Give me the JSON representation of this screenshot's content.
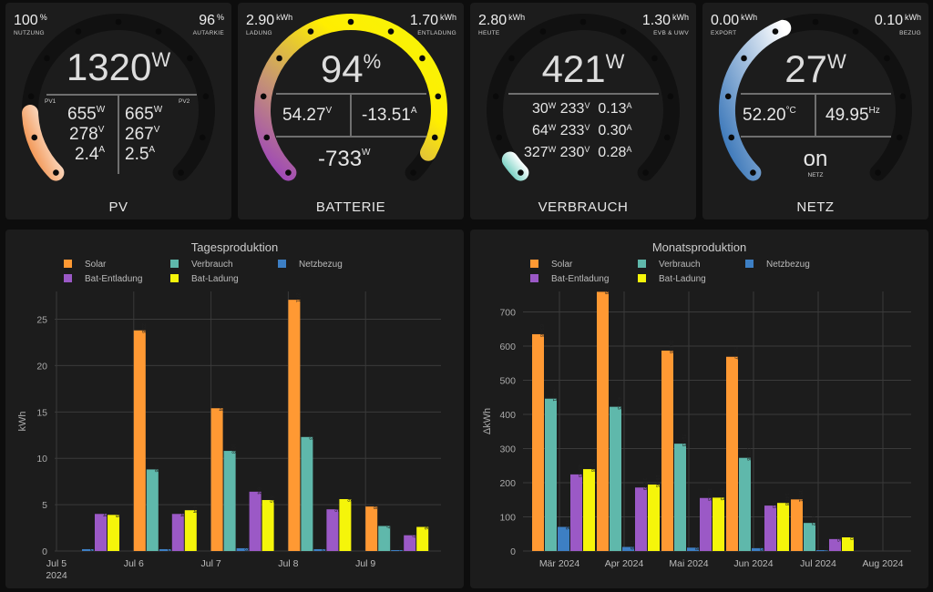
{
  "colors": {
    "solar": "#ff9933",
    "verbrauch": "#5fb8ab",
    "netzbezug": "#3d7fc4",
    "entladung": "#9b59c6",
    "ladung": "#f5f50a"
  },
  "pv": {
    "tl_value": "100",
    "tl_unit": "%",
    "tl_caption": "NUTZUNG",
    "tr_value": "96",
    "tr_unit": "%",
    "tr_caption": "AUTARKIE",
    "power": "1320",
    "power_unit": "W",
    "pv1_label": "PV1",
    "pv2_label": "PV2",
    "pv1_power": "655",
    "pv1_voltage": "278",
    "pv1_current": "2.4",
    "pv2_power": "665",
    "pv2_voltage": "267",
    "pv2_current": "2.5",
    "unit_w": "W",
    "unit_v": "V",
    "unit_a": "A",
    "title": "PV",
    "gauge_fraction": 0.16
  },
  "batterie": {
    "tl_value": "2.90",
    "tl_unit": "kWh",
    "tl_caption": "LADUNG",
    "tr_value": "1.70",
    "tr_unit": "kWh",
    "tr_caption": "ENTLADUNG",
    "soc": "94",
    "soc_unit": "%",
    "voltage": "54.27",
    "current": "-13.51",
    "power": "-733",
    "unit_v": "V",
    "unit_a": "A",
    "unit_w": "W",
    "title": "BATTERIE",
    "gauge_fraction": 0.94
  },
  "verbrauch": {
    "tl_value": "2.80",
    "tl_unit": "kWh",
    "tl_caption": "HEUTE",
    "tr_value": "1.30",
    "tr_unit": "kWh",
    "tr_caption": "EVB & UWV",
    "power": "421",
    "power_unit": "W",
    "phases": [
      {
        "w": "30",
        "v": "233",
        "a": "0.13"
      },
      {
        "w": "64",
        "v": "233",
        "a": "0.30"
      },
      {
        "w": "327",
        "v": "230",
        "a": "0.28"
      }
    ],
    "unit_w": "W",
    "unit_v": "V",
    "unit_a": "A",
    "title": "VERBRAUCH",
    "gauge_fraction": 0.04
  },
  "netz": {
    "tl_value": "0.00",
    "tl_unit": "kWh",
    "tl_caption": "EXPORT",
    "tr_value": "0.10",
    "tr_unit": "kWh",
    "tr_caption": "BEZUG",
    "power": "27",
    "power_unit": "W",
    "temp": "52.20",
    "temp_unit": "°C",
    "freq": "49.95",
    "freq_unit": "Hz",
    "state": "on",
    "state_caption": "NETZ",
    "title": "NETZ",
    "gauge_fraction": 0.42
  },
  "chart_data": [
    {
      "type": "bar",
      "title": "Tagesproduktion",
      "ylabel": "kWh",
      "xlabel": "",
      "ylim": [
        0,
        28
      ],
      "yticks": [
        0,
        5,
        10,
        15,
        20,
        25
      ],
      "categories": [
        "Jul 5",
        "Jul 6",
        "Jul 7",
        "Jul 8",
        "Jul 9"
      ],
      "x_ticks": [
        "Jul 5\n2024",
        "Jul 6",
        "Jul 7",
        "Jul 8",
        "Jul 9"
      ],
      "series": [
        {
          "name": "Solar",
          "values": [
            null,
            23.8,
            15.4,
            27.1,
            4.8
          ],
          "labels": [
            "",
            "23,8",
            "15,4",
            "27,1",
            "4,8"
          ]
        },
        {
          "name": "Verbrauch",
          "values": [
            null,
            8.8,
            10.8,
            12.3,
            2.7
          ],
          "labels": [
            "",
            "8,8",
            "10,8",
            "12,3",
            "2,7"
          ]
        },
        {
          "name": "Netzbezug",
          "values": [
            0.2,
            0.2,
            0.3,
            0.2,
            0.1
          ],
          "labels": [
            "0,2",
            "0,2",
            "0,3",
            "0,2",
            "0,1"
          ]
        },
        {
          "name": "Bat-Entladung",
          "values": [
            4,
            4,
            6.4,
            4.5,
            1.7
          ],
          "labels": [
            "4",
            "4",
            "6,4",
            "4,5",
            "1,7"
          ]
        },
        {
          "name": "Bat-Ladung",
          "values": [
            3.9,
            4.4,
            5.5,
            5.6,
            2.6
          ],
          "labels": [
            "3,9",
            "4,4",
            "5,5",
            "5,6",
            "2,6"
          ]
        }
      ]
    },
    {
      "type": "bar",
      "title": "Monatsproduktion",
      "ylabel": "ΔkWh",
      "xlabel": "",
      "ylim": [
        0,
        760
      ],
      "yticks": [
        0,
        100,
        200,
        300,
        400,
        500,
        600,
        700
      ],
      "categories": [
        "Mär 2024",
        "Apr 2024",
        "Mai 2024",
        "Jun 2024",
        "Jul 2024",
        "Aug 2024"
      ],
      "series": [
        {
          "name": "Solar",
          "values": [
            634.8,
            759,
            586.8,
            568.7,
            151.1,
            null
          ],
          "labels": [
            "634,8",
            "759",
            "586,8",
            "568,7",
            "151,1",
            ""
          ]
        },
        {
          "name": "Verbrauch",
          "values": [
            446.1,
            422.3,
            314.3,
            272.8,
            82.2,
            null
          ],
          "labels": [
            "446,1",
            "422,3",
            "314,3",
            "272,8",
            "82,2",
            ""
          ]
        },
        {
          "name": "Netzbezug",
          "values": [
            70.6,
            11.9,
            9.8,
            8.3,
            2.5,
            null
          ],
          "labels": [
            "70,6",
            "11,9",
            "9,8",
            "8,3",
            "2,5",
            ""
          ]
        },
        {
          "name": "Bat-Entladung",
          "values": [
            224.3,
            185.9,
            155.3,
            133,
            35,
            null
          ],
          "labels": [
            "224,3",
            "185,9",
            "155,3",
            "133",
            "35",
            ""
          ]
        },
        {
          "name": "Bat-Ladung",
          "values": [
            239.8,
            194.6,
            156.3,
            140.8,
            40,
            null
          ],
          "labels": [
            "239,8",
            "194,6",
            "156,3",
            "140,8",
            "40",
            ""
          ]
        }
      ]
    }
  ]
}
